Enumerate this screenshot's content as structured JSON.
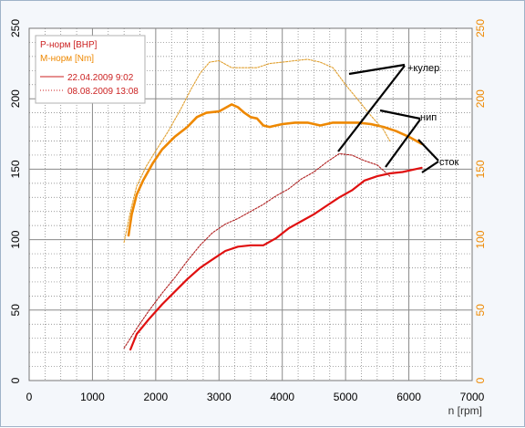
{
  "chart_data": {
    "type": "line",
    "xlabel": "n [rpm]",
    "xlim": [
      0,
      7000
    ],
    "x_ticks": [
      "0",
      "1000",
      "2000",
      "3000",
      "4000",
      "5000",
      "6000",
      "7000"
    ],
    "ylim_left": [
      0,
      250
    ],
    "y_ticks_left": [
      "0",
      "50",
      "100",
      "150",
      "200",
      "250"
    ],
    "ylim_right": [
      0,
      250
    ],
    "y_ticks_right": [
      "0",
      "50",
      "100",
      "150",
      "200",
      "250"
    ],
    "grid": true,
    "legend_position": "top-left",
    "legend": {
      "quantities": [
        {
          "label": "P-норм [BHP]",
          "color": "#cc2222"
        },
        {
          "label": "M-норм [Nm]",
          "color": "#ee8800"
        }
      ],
      "runs": [
        {
          "label": "22.04.2009 9:02",
          "style": "solid"
        },
        {
          "label": "08.08.2009 13:08",
          "style": "dotted"
        }
      ]
    },
    "colors": {
      "power_run1": "#e01010",
      "torque_run1": "#ee8800",
      "power_run2": "#b02020",
      "torque_run2": "#e0a030",
      "right_axis": "#ee8800",
      "left_axis": "#000000"
    },
    "series": [
      {
        "quantity": "P-норм [BHP]",
        "run": "22.04.2009 9:02",
        "style": "solid",
        "x": [
          1600,
          1700,
          1900,
          2100,
          2300,
          2500,
          2700,
          2900,
          3100,
          3300,
          3500,
          3700,
          3900,
          4100,
          4300,
          4500,
          4700,
          4900,
          5100,
          5300,
          5500,
          5700,
          5900,
          6100,
          6200
        ],
        "y": [
          22,
          33,
          44,
          54,
          63,
          72,
          80,
          86,
          92,
          95,
          96,
          96,
          101,
          108,
          113,
          118,
          124,
          130,
          135,
          142,
          145,
          147,
          148,
          150,
          151
        ]
      },
      {
        "quantity": "M-норм [Nm]",
        "run": "22.04.2009 9:02",
        "style": "solid",
        "x": [
          1570,
          1620,
          1700,
          1800,
          1950,
          2100,
          2300,
          2500,
          2650,
          2800,
          3000,
          3200,
          3300,
          3400,
          3500,
          3600,
          3700,
          3800,
          3900,
          4000,
          4200,
          4400,
          4600,
          4800,
          5000,
          5200,
          5400,
          5600,
          5800,
          6000,
          6200
        ],
        "y": [
          103,
          118,
          132,
          142,
          154,
          164,
          173,
          180,
          187,
          190,
          191,
          196,
          194,
          190,
          187,
          186,
          181,
          180,
          181,
          182,
          183,
          183,
          181,
          183,
          183,
          183,
          182,
          180,
          177,
          173,
          168
        ]
      },
      {
        "quantity": "P-норм [BHP]",
        "run": "08.08.2009 13:08",
        "style": "dotted",
        "x": [
          1500,
          1700,
          1900,
          2100,
          2300,
          2500,
          2700,
          2900,
          3100,
          3300,
          3500,
          3700,
          3900,
          4100,
          4300,
          4500,
          4700,
          4900,
          5100,
          5300,
          5500,
          5700
        ],
        "y": [
          23,
          37,
          50,
          62,
          73,
          85,
          96,
          105,
          111,
          115,
          120,
          125,
          131,
          136,
          143,
          148,
          155,
          161,
          160,
          156,
          153,
          145
        ]
      },
      {
        "quantity": "M-норм [Nm]",
        "run": "08.08.2009 13:08",
        "style": "dotted",
        "x": [
          1500,
          1600,
          1700,
          1850,
          2000,
          2200,
          2400,
          2550,
          2700,
          2850,
          3000,
          3200,
          3400,
          3600,
          3800,
          4000,
          4200,
          4400,
          4600,
          4800,
          5000,
          5200,
          5400,
          5600,
          5700
        ],
        "y": [
          98,
          120,
          138,
          152,
          163,
          177,
          193,
          206,
          218,
          226,
          227,
          222,
          222,
          222,
          225,
          226,
          227,
          228,
          226,
          222,
          210,
          199,
          188,
          178,
          170
        ]
      }
    ]
  },
  "annotations": [
    {
      "text": "+кулер"
    },
    {
      "text": "нип"
    },
    {
      "text": "сток"
    }
  ]
}
